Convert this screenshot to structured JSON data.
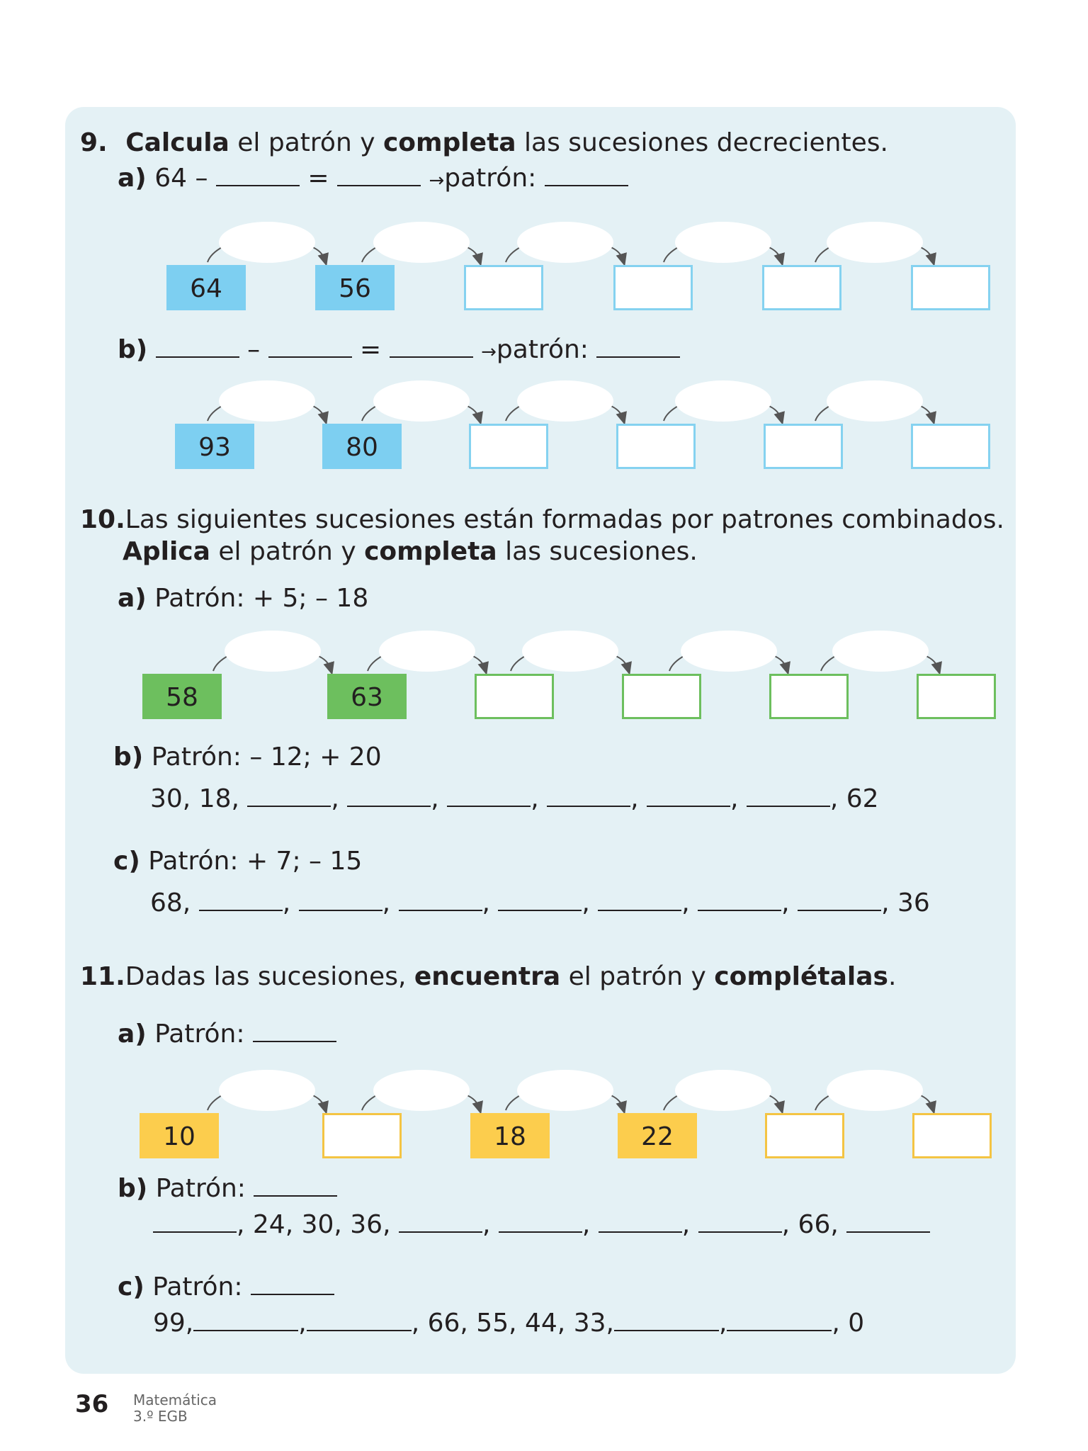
{
  "colors": {
    "blue": "#7dcff1",
    "blue_border": "#85d2f0",
    "green": "#6dbf5e",
    "green_border": "#6dbf5e",
    "yellow": "#fccd4d",
    "yellow_border": "#f4c443",
    "panel": "#e4f1f5"
  },
  "ex9": {
    "number": "9.",
    "instr": {
      "w1": "Calcula",
      "t1": " el patrón y ",
      "w2": "completa",
      "t2": " las sucesiones decrecientes."
    },
    "a": {
      "label": "a)",
      "start": "64 –",
      "eq": "=",
      "pat": "patrón:"
    },
    "b": {
      "label": "b)",
      "minus": "–",
      "eq": "=",
      "pat": "patrón:"
    },
    "row_a": [
      "64",
      "56",
      "",
      "",
      "",
      ""
    ],
    "row_b": [
      "93",
      "80",
      "",
      "",
      "",
      ""
    ]
  },
  "ex10": {
    "number": "10.",
    "line1": "Las siguientes sucesiones están formadas por patrones combinados.",
    "line2": {
      "w1": "Aplica",
      "t1": " el patrón y ",
      "w2": "completa",
      "t2": " las sucesiones."
    },
    "a": {
      "label": "a)",
      "text": "Patrón: + 5; – 18",
      "row": [
        "58",
        "63",
        "",
        "",
        "",
        ""
      ]
    },
    "b": {
      "label": "b)",
      "text": "Patrón: – 12; + 20",
      "start": "30, 18,",
      "sep": ",",
      "end": ", 62"
    },
    "c": {
      "label": "c)",
      "text": "Patrón: + 7; – 15",
      "start": "68,",
      "sep": ",",
      "end": ", 36"
    }
  },
  "ex11": {
    "number": "11.",
    "instr": {
      "t1": "Dadas las sucesiones, ",
      "w1": "encuentra",
      "t2": " el patrón y ",
      "w2": "complétalas",
      "t3": "."
    },
    "a": {
      "label": "a)",
      "text": "Patrón:",
      "row": [
        "10",
        "",
        "18",
        "22",
        "",
        ""
      ]
    },
    "b": {
      "label": "b)",
      "text": "Patrón:",
      "mid": ", 24, 30, 36,",
      "sep": ",",
      "end": ", 66,"
    },
    "c": {
      "label": "c)",
      "text": "Patrón:",
      "start": "99,",
      "sep": ",",
      "mid": ", 66, 55, 44, 33,",
      "end": ", 0"
    }
  },
  "footer": {
    "page": "36",
    "subject": "Matemática",
    "grade": "3.º EGB"
  }
}
